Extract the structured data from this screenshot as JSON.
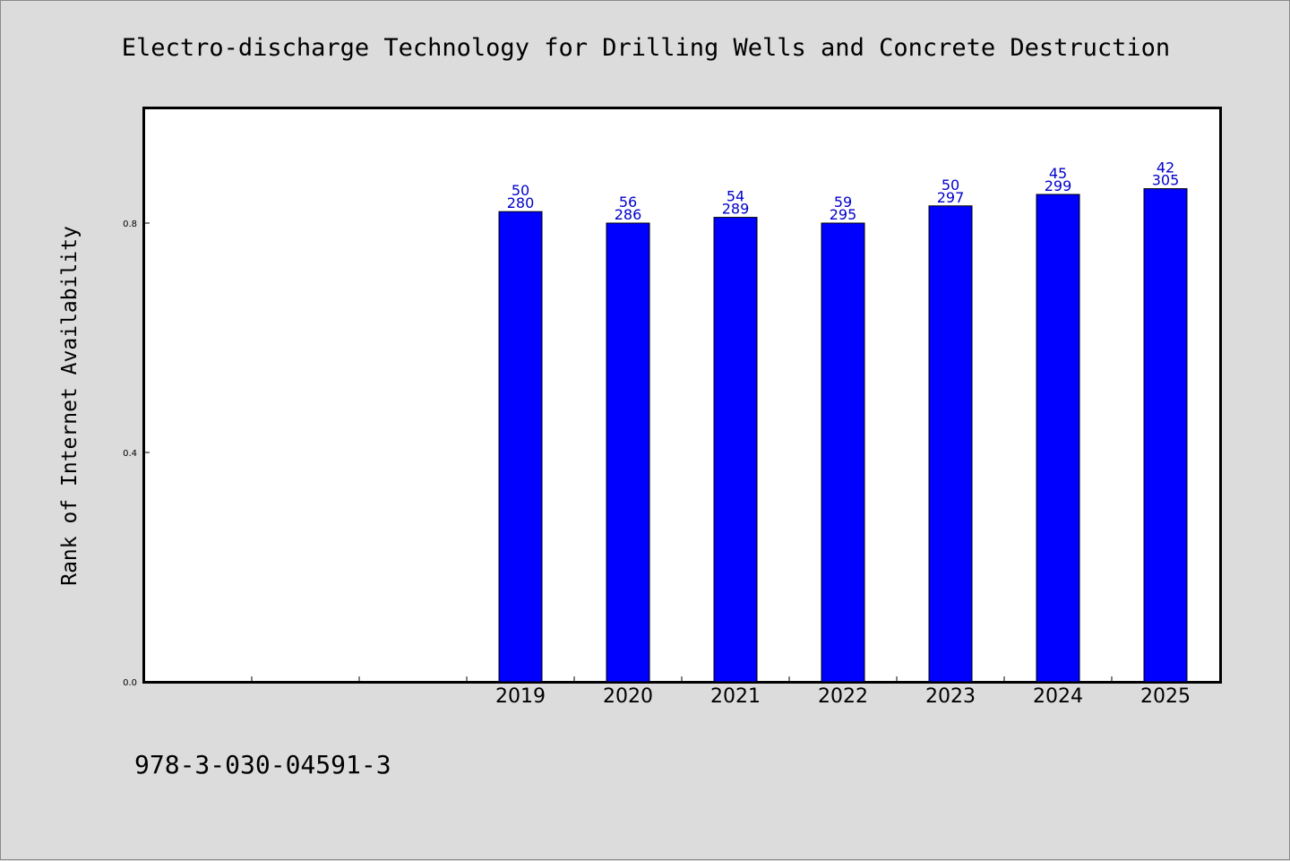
{
  "title": "Electro-discharge Technology for Drilling Wells and Concrete Destruction",
  "footer_code": "978-3-030-04591-3",
  "colors": {
    "background": "#dcdcdc",
    "plot_background": "#ffffff",
    "bar_fill": "#0000ff",
    "bar_label": "#0000cc"
  },
  "chart_data": {
    "type": "bar",
    "title": "Electro-discharge Technology for Drilling Wells and Concrete Destruction",
    "xlabel": "",
    "ylabel": "Rank of Internet Availability",
    "categories": [
      "",
      "",
      "",
      "2019",
      "2020",
      "2021",
      "2022",
      "2023",
      "2024",
      "2025"
    ],
    "values": [
      null,
      null,
      null,
      0.82,
      0.8,
      0.81,
      0.8,
      0.83,
      0.85,
      0.86
    ],
    "bar_labels_top": [
      null,
      null,
      null,
      "50",
      "56",
      "54",
      "59",
      "50",
      "45",
      "42"
    ],
    "bar_labels_bottom": [
      null,
      null,
      null,
      "280",
      "286",
      "289",
      "295",
      "297",
      "299",
      "305"
    ],
    "ylim": [
      0,
      1.0
    ],
    "yticks": [
      0.0,
      0.4,
      0.8
    ],
    "ytick_labels": [
      "0.0",
      "0.4",
      "0.8"
    ],
    "grid": false,
    "legend": "none"
  }
}
